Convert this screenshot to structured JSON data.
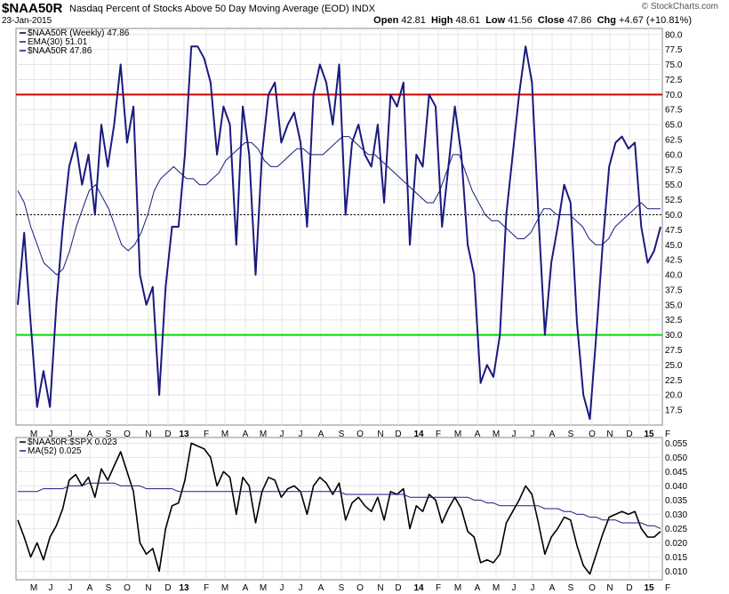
{
  "header": {
    "symbol": "$NAA50R",
    "description": "Nasdaq Percent of Stocks Above 50 Day Moving Average (EOD)  INDX",
    "watermark": "© StockCharts.com",
    "date": "23-Jan-2015",
    "open_label": "Open",
    "open": "42.81",
    "high_label": "High",
    "high": "48.61",
    "low_label": "Low",
    "low": "41.56",
    "close_label": "Close",
    "close": "47.86",
    "chg_label": "Chg",
    "chg": "+4.67 (+10.81%)"
  },
  "chart_data": [
    {
      "type": "line",
      "panel": "main",
      "legend": [
        {
          "label": "$NAA50R (Weekly) 47.86",
          "color": "#000000"
        },
        {
          "label": "EMA(30) 51.01",
          "color": "#1a1a80"
        },
        {
          "label": "$NAA50R 47.86",
          "color": "#1a1a80"
        }
      ],
      "ylim": [
        15,
        81
      ],
      "yticks": [
        "17.5",
        "20.0",
        "22.5",
        "25.0",
        "27.5",
        "30.0",
        "32.5",
        "35.0",
        "37.5",
        "40.0",
        "42.5",
        "45.0",
        "47.5",
        "50.0",
        "52.5",
        "55.0",
        "57.5",
        "60.0",
        "62.5",
        "65.0",
        "67.5",
        "70.0",
        "72.5",
        "75.0",
        "77.5",
        "80.0"
      ],
      "xlabels": [
        "M",
        "J",
        "J",
        "A",
        "S",
        "O",
        "N",
        "D",
        "13",
        "F",
        "M",
        "A",
        "M",
        "J",
        "J",
        "A",
        "S",
        "O",
        "N",
        "D",
        "14",
        "F",
        "M",
        "A",
        "M",
        "J",
        "J",
        "A",
        "S",
        "O",
        "N",
        "D",
        "15",
        "F"
      ],
      "reference_lines": [
        {
          "value": 70,
          "color": "#cc0000"
        },
        {
          "value": 30,
          "color": "#00dd00"
        },
        {
          "value": 50,
          "color": "#000000",
          "style": "dotted"
        }
      ],
      "series": [
        {
          "values": [
            35,
            47,
            32,
            18,
            24,
            18,
            35,
            48,
            58,
            62,
            55,
            60,
            50,
            65,
            58,
            65,
            75,
            62,
            68,
            40,
            35,
            38,
            20,
            38,
            48,
            48,
            60,
            78,
            78,
            76,
            72,
            60,
            68,
            65,
            45,
            68,
            60,
            40,
            60,
            70,
            72,
            62,
            65,
            67,
            62,
            48,
            70,
            75,
            72,
            65,
            75,
            50,
            62,
            65,
            60,
            58,
            65,
            52,
            70,
            68,
            72,
            45,
            60,
            58,
            70,
            68,
            48,
            58,
            68,
            60,
            45,
            40,
            22,
            25,
            23,
            30,
            50,
            60,
            70,
            78,
            72,
            50,
            30,
            42,
            48,
            55,
            52,
            32,
            20,
            16,
            30,
            45,
            58,
            62,
            63,
            61,
            62,
            48,
            42,
            44,
            48
          ]
        },
        {
          "values": [
            54,
            52,
            48,
            45,
            42,
            41,
            40,
            41,
            44,
            48,
            51,
            54,
            55,
            53,
            51,
            48,
            45,
            44,
            45,
            47,
            50,
            54,
            56,
            57,
            58,
            57,
            56,
            56,
            55,
            55,
            56,
            57,
            59,
            60,
            61,
            62,
            62,
            61,
            59,
            58,
            58,
            59,
            60,
            61,
            61,
            60,
            60,
            60,
            61,
            62,
            63,
            63,
            62,
            61,
            60,
            60,
            59,
            58,
            57,
            56,
            55,
            54,
            53,
            52,
            52,
            54,
            57,
            60,
            60,
            57,
            54,
            52,
            50,
            49,
            49,
            48,
            47,
            46,
            46,
            47,
            49,
            51,
            51,
            50,
            50,
            50,
            49,
            48,
            46,
            45,
            45,
            46,
            48,
            49,
            50,
            51,
            52,
            51,
            51,
            51
          ]
        }
      ]
    },
    {
      "type": "line",
      "panel": "ratio",
      "legend": [
        {
          "label": "$NAA50R:$SPX 0.023",
          "color": "#000000"
        },
        {
          "label": "MA(52) 0.025",
          "color": "#1a1a80"
        }
      ],
      "ylim": [
        0.007,
        0.057
      ],
      "yticks": [
        "0.010",
        "0.015",
        "0.020",
        "0.025",
        "0.030",
        "0.035",
        "0.040",
        "0.045",
        "0.050",
        "0.055"
      ],
      "xlabels": [
        "M",
        "J",
        "J",
        "A",
        "S",
        "O",
        "N",
        "D",
        "13",
        "F",
        "M",
        "A",
        "M",
        "J",
        "J",
        "A",
        "S",
        "O",
        "N",
        "D",
        "14",
        "F",
        "M",
        "A",
        "M",
        "J",
        "J",
        "A",
        "S",
        "O",
        "N",
        "D",
        "15",
        "F"
      ],
      "series": [
        {
          "values": [
            0.028,
            0.022,
            0.015,
            0.02,
            0.014,
            0.022,
            0.026,
            0.032,
            0.042,
            0.044,
            0.04,
            0.043,
            0.036,
            0.046,
            0.042,
            0.047,
            0.052,
            0.045,
            0.038,
            0.02,
            0.016,
            0.018,
            0.01,
            0.025,
            0.033,
            0.034,
            0.042,
            0.055,
            0.054,
            0.053,
            0.05,
            0.04,
            0.045,
            0.043,
            0.03,
            0.043,
            0.04,
            0.027,
            0.038,
            0.043,
            0.042,
            0.036,
            0.039,
            0.04,
            0.038,
            0.03,
            0.04,
            0.043,
            0.041,
            0.037,
            0.041,
            0.028,
            0.034,
            0.036,
            0.033,
            0.031,
            0.036,
            0.028,
            0.038,
            0.037,
            0.039,
            0.025,
            0.033,
            0.031,
            0.037,
            0.035,
            0.027,
            0.032,
            0.036,
            0.032,
            0.024,
            0.022,
            0.013,
            0.014,
            0.013,
            0.016,
            0.027,
            0.031,
            0.035,
            0.04,
            0.037,
            0.027,
            0.016,
            0.022,
            0.025,
            0.029,
            0.028,
            0.019,
            0.012,
            0.009,
            0.016,
            0.023,
            0.029,
            0.03,
            0.031,
            0.03,
            0.031,
            0.025,
            0.022,
            0.022,
            0.024
          ]
        },
        {
          "values": [
            0.038,
            0.038,
            0.038,
            0.038,
            0.039,
            0.039,
            0.039,
            0.039,
            0.04,
            0.04,
            0.04,
            0.041,
            0.041,
            0.041,
            0.041,
            0.041,
            0.04,
            0.04,
            0.04,
            0.04,
            0.039,
            0.039,
            0.039,
            0.039,
            0.039,
            0.038,
            0.038,
            0.038,
            0.038,
            0.038,
            0.038,
            0.038,
            0.038,
            0.038,
            0.038,
            0.038,
            0.038,
            0.038,
            0.038,
            0.038,
            0.038,
            0.038,
            0.038,
            0.038,
            0.038,
            0.038,
            0.038,
            0.038,
            0.038,
            0.038,
            0.038,
            0.037,
            0.037,
            0.037,
            0.037,
            0.037,
            0.037,
            0.037,
            0.037,
            0.037,
            0.037,
            0.036,
            0.036,
            0.036,
            0.036,
            0.036,
            0.036,
            0.036,
            0.036,
            0.036,
            0.036,
            0.035,
            0.035,
            0.034,
            0.034,
            0.033,
            0.033,
            0.033,
            0.033,
            0.033,
            0.033,
            0.033,
            0.032,
            0.032,
            0.032,
            0.031,
            0.031,
            0.03,
            0.03,
            0.029,
            0.029,
            0.028,
            0.028,
            0.028,
            0.027,
            0.027,
            0.027,
            0.027,
            0.026,
            0.026,
            0.025
          ]
        }
      ]
    }
  ]
}
